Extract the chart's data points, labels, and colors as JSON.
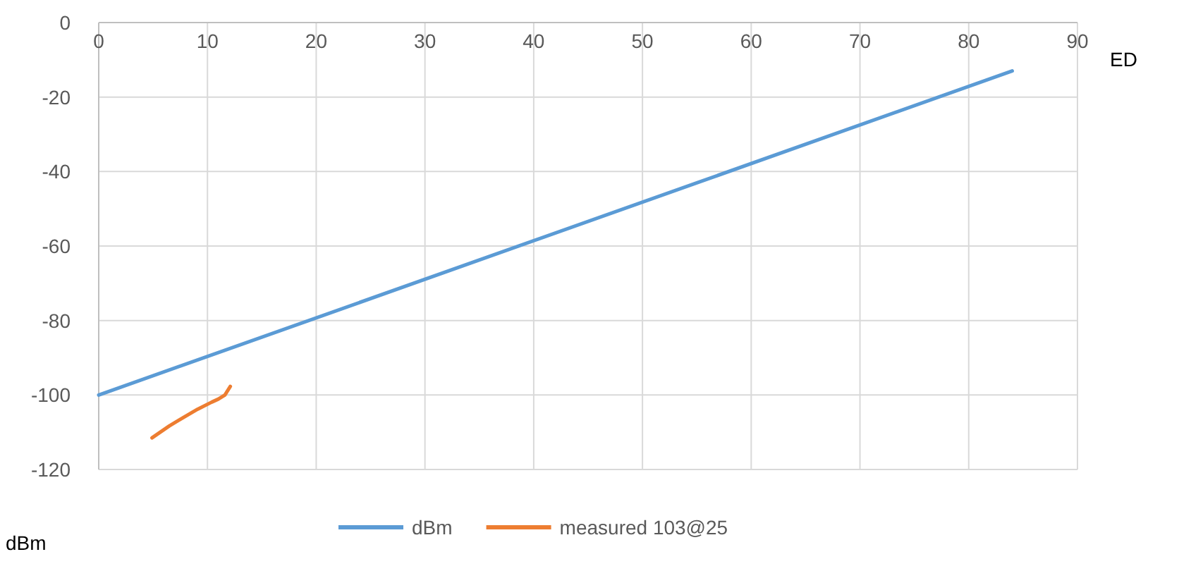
{
  "chart_data": {
    "type": "line",
    "xlabel": "ED",
    "ylabel": "dBm",
    "xlim": [
      0,
      90
    ],
    "xticks": [
      0,
      10,
      20,
      30,
      40,
      50,
      60,
      70,
      80,
      90
    ],
    "ylim": [
      -120,
      0
    ],
    "yticks": [
      0,
      -20,
      -40,
      -60,
      -80,
      -100,
      -120
    ],
    "grid": true,
    "legend": "bottom",
    "marker": "none",
    "line_style": "solid",
    "series": [
      {
        "name": "dBm",
        "color": "#5b9bd5",
        "x": [
          0,
          84
        ],
        "values": [
          -100,
          -13
        ]
      },
      {
        "name": "measured 103@25",
        "color": "#ed7d31",
        "x": [
          4.9,
          6.5,
          7.8,
          9.1,
          10.4,
          11,
          11.6,
          12.1
        ],
        "values": [
          -111.5,
          -108.3,
          -106,
          -103.8,
          -101.9,
          -101.1,
          -100,
          -97.7
        ]
      }
    ]
  }
}
